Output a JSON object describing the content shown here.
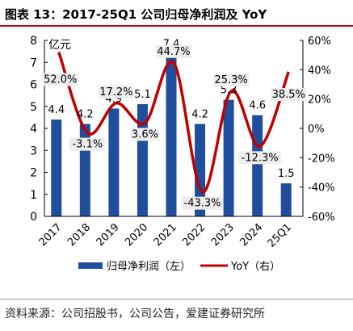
{
  "header": {
    "title": "图表 13：2017-25Q1 公司归母净利润及 YoY"
  },
  "footer": {
    "source": "资料来源：公司招股书，公司公告，爱建证券研究所"
  },
  "colors": {
    "bar": "#1f4e9c",
    "line": "#c00000",
    "title_rule": "#b30000",
    "label_bg": "#ededed"
  },
  "chart_data": {
    "type": "bar+line",
    "categories": [
      "2017",
      "2018",
      "2019",
      "2020",
      "2021",
      "2022",
      "2023",
      "2024",
      "25Q1"
    ],
    "series": [
      {
        "name": "归母净利润（左）",
        "type": "bar",
        "axis": "left",
        "values": [
          4.4,
          4.2,
          4.9,
          5.1,
          7.4,
          4.2,
          5.3,
          4.6,
          1.5
        ],
        "labels": [
          "4.4",
          "4.2",
          "4.9",
          "5.1",
          "7.4",
          "4.2",
          "5.3",
          "4.6",
          "1.5"
        ]
      },
      {
        "name": "YoY（右）",
        "type": "line",
        "axis": "right",
        "values": [
          52.0,
          -3.1,
          17.2,
          3.6,
          44.7,
          -43.3,
          25.3,
          -12.3,
          38.5
        ],
        "labels": [
          "52.0%",
          "-3.1%",
          "17.2%",
          "3.6%",
          "44.7%",
          "-43.3%",
          "25.3%",
          "-12.3%",
          "38.5%"
        ]
      }
    ],
    "y_left": {
      "label": "亿元",
      "min": 0,
      "max": 8,
      "ticks": [
        "0",
        "1",
        "2",
        "3",
        "4",
        "5",
        "6",
        "7",
        "8"
      ]
    },
    "y_right": {
      "min": -60,
      "max": 60,
      "ticks": [
        "-60%",
        "-40%",
        "-20%",
        "0%",
        "20%",
        "40%",
        "60%"
      ]
    },
    "legend": {
      "position": "bottom"
    },
    "grid": false
  }
}
